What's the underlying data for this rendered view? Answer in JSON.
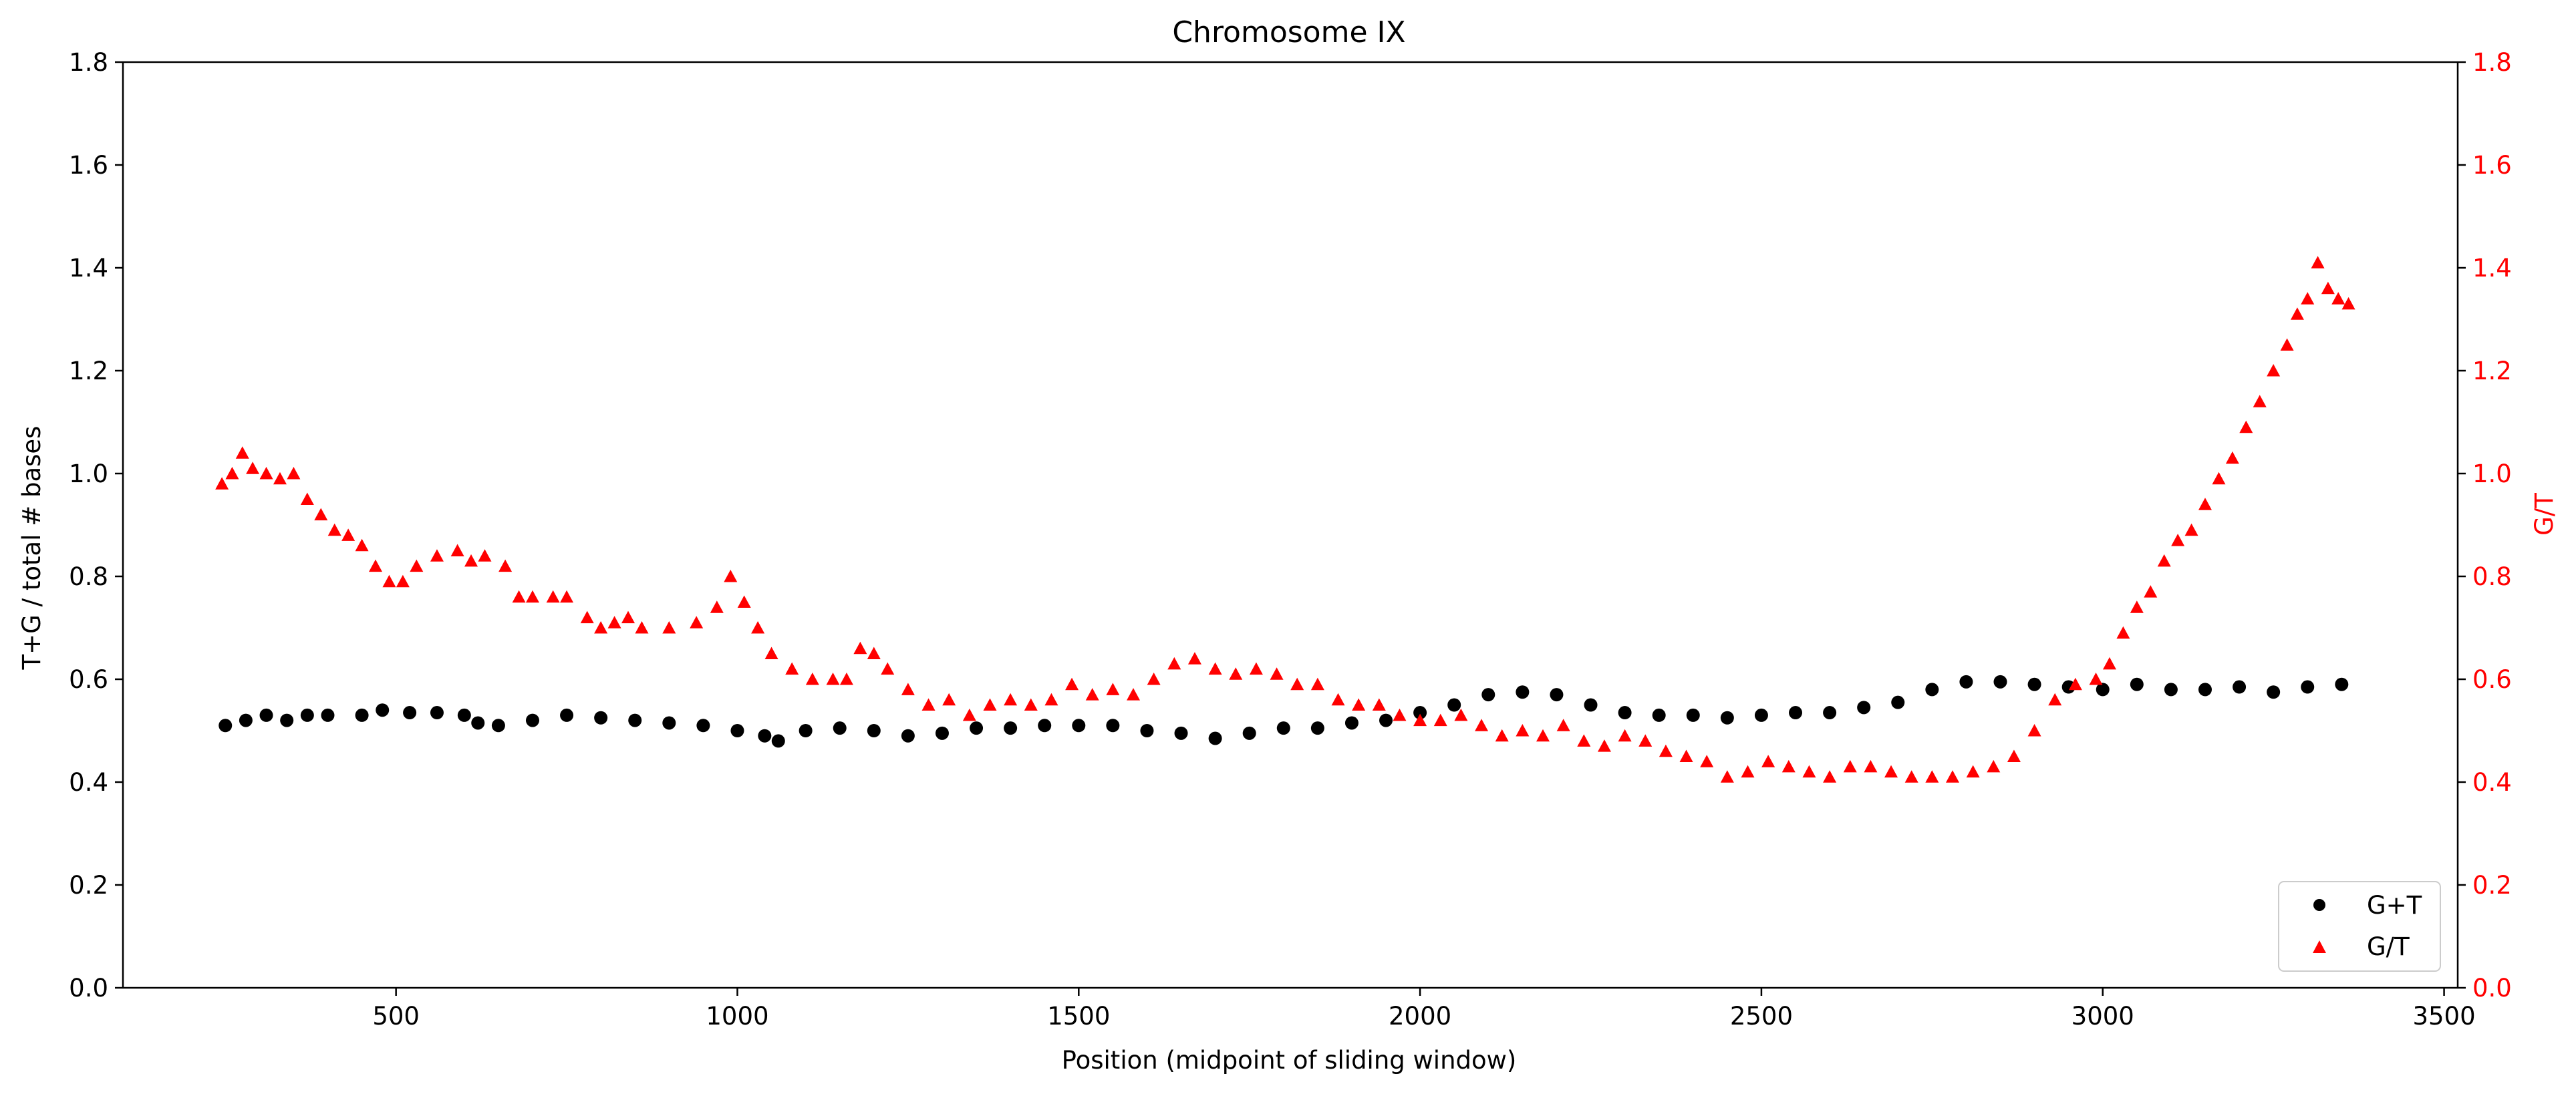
{
  "chart_data": {
    "type": "scatter",
    "title": "Chromosome IX",
    "xlabel": "Position (midpoint of sliding window)",
    "ylabel_left": "T+G / total # bases",
    "ylabel_right": "G/T",
    "xlim": [
      100,
      3520
    ],
    "ylim": [
      0,
      1.8
    ],
    "xticks": [
      500,
      1000,
      1500,
      2000,
      2500,
      3000,
      3500
    ],
    "yticks": [
      0.0,
      0.2,
      0.4,
      0.6,
      0.8,
      1.0,
      1.2,
      1.4,
      1.6,
      1.8
    ],
    "grid": false,
    "legend_position": "lower-right",
    "series": [
      {
        "name": "G+T",
        "axis": "left",
        "marker": "circle",
        "color": "#000000",
        "points": [
          [
            250,
            0.51
          ],
          [
            280,
            0.52
          ],
          [
            310,
            0.53
          ],
          [
            340,
            0.52
          ],
          [
            370,
            0.53
          ],
          [
            400,
            0.53
          ],
          [
            450,
            0.53
          ],
          [
            480,
            0.54
          ],
          [
            520,
            0.535
          ],
          [
            560,
            0.535
          ],
          [
            600,
            0.53
          ],
          [
            620,
            0.515
          ],
          [
            650,
            0.51
          ],
          [
            700,
            0.52
          ],
          [
            750,
            0.53
          ],
          [
            800,
            0.525
          ],
          [
            850,
            0.52
          ],
          [
            900,
            0.515
          ],
          [
            950,
            0.51
          ],
          [
            1000,
            0.5
          ],
          [
            1040,
            0.49
          ],
          [
            1060,
            0.48
          ],
          [
            1100,
            0.5
          ],
          [
            1150,
            0.505
          ],
          [
            1200,
            0.5
          ],
          [
            1250,
            0.49
          ],
          [
            1300,
            0.495
          ],
          [
            1350,
            0.505
          ],
          [
            1400,
            0.505
          ],
          [
            1450,
            0.51
          ],
          [
            1500,
            0.51
          ],
          [
            1550,
            0.51
          ],
          [
            1600,
            0.5
          ],
          [
            1650,
            0.495
          ],
          [
            1700,
            0.485
          ],
          [
            1750,
            0.495
          ],
          [
            1800,
            0.505
          ],
          [
            1850,
            0.505
          ],
          [
            1900,
            0.515
          ],
          [
            1950,
            0.52
          ],
          [
            2000,
            0.535
          ],
          [
            2050,
            0.55
          ],
          [
            2100,
            0.57
          ],
          [
            2150,
            0.575
          ],
          [
            2200,
            0.57
          ],
          [
            2250,
            0.55
          ],
          [
            2300,
            0.535
          ],
          [
            2350,
            0.53
          ],
          [
            2400,
            0.53
          ],
          [
            2450,
            0.525
          ],
          [
            2500,
            0.53
          ],
          [
            2550,
            0.535
          ],
          [
            2600,
            0.535
          ],
          [
            2650,
            0.545
          ],
          [
            2700,
            0.555
          ],
          [
            2750,
            0.58
          ],
          [
            2800,
            0.595
          ],
          [
            2850,
            0.595
          ],
          [
            2900,
            0.59
          ],
          [
            2950,
            0.585
          ],
          [
            3000,
            0.58
          ],
          [
            3050,
            0.59
          ],
          [
            3100,
            0.58
          ],
          [
            3150,
            0.58
          ],
          [
            3200,
            0.585
          ],
          [
            3250,
            0.575
          ],
          [
            3300,
            0.585
          ],
          [
            3350,
            0.59
          ]
        ]
      },
      {
        "name": "G/T",
        "axis": "right",
        "marker": "triangle",
        "color": "#ff0000",
        "points": [
          [
            245,
            0.98
          ],
          [
            260,
            1.0
          ],
          [
            275,
            1.04
          ],
          [
            290,
            1.01
          ],
          [
            310,
            1.0
          ],
          [
            330,
            0.99
          ],
          [
            350,
            1.0
          ],
          [
            370,
            0.95
          ],
          [
            390,
            0.92
          ],
          [
            410,
            0.89
          ],
          [
            430,
            0.88
          ],
          [
            450,
            0.86
          ],
          [
            470,
            0.82
          ],
          [
            490,
            0.79
          ],
          [
            510,
            0.79
          ],
          [
            530,
            0.82
          ],
          [
            560,
            0.84
          ],
          [
            590,
            0.85
          ],
          [
            610,
            0.83
          ],
          [
            630,
            0.84
          ],
          [
            660,
            0.82
          ],
          [
            680,
            0.76
          ],
          [
            700,
            0.76
          ],
          [
            730,
            0.76
          ],
          [
            750,
            0.76
          ],
          [
            780,
            0.72
          ],
          [
            800,
            0.7
          ],
          [
            820,
            0.71
          ],
          [
            840,
            0.72
          ],
          [
            860,
            0.7
          ],
          [
            900,
            0.7
          ],
          [
            940,
            0.71
          ],
          [
            970,
            0.74
          ],
          [
            990,
            0.8
          ],
          [
            1010,
            0.75
          ],
          [
            1030,
            0.7
          ],
          [
            1050,
            0.65
          ],
          [
            1080,
            0.62
          ],
          [
            1110,
            0.6
          ],
          [
            1140,
            0.6
          ],
          [
            1160,
            0.6
          ],
          [
            1180,
            0.66
          ],
          [
            1200,
            0.65
          ],
          [
            1220,
            0.62
          ],
          [
            1250,
            0.58
          ],
          [
            1280,
            0.55
          ],
          [
            1310,
            0.56
          ],
          [
            1340,
            0.53
          ],
          [
            1370,
            0.55
          ],
          [
            1400,
            0.56
          ],
          [
            1430,
            0.55
          ],
          [
            1460,
            0.56
          ],
          [
            1490,
            0.59
          ],
          [
            1520,
            0.57
          ],
          [
            1550,
            0.58
          ],
          [
            1580,
            0.57
          ],
          [
            1610,
            0.6
          ],
          [
            1640,
            0.63
          ],
          [
            1670,
            0.64
          ],
          [
            1700,
            0.62
          ],
          [
            1730,
            0.61
          ],
          [
            1760,
            0.62
          ],
          [
            1790,
            0.61
          ],
          [
            1820,
            0.59
          ],
          [
            1850,
            0.59
          ],
          [
            1880,
            0.56
          ],
          [
            1910,
            0.55
          ],
          [
            1940,
            0.55
          ],
          [
            1970,
            0.53
          ],
          [
            2000,
            0.52
          ],
          [
            2030,
            0.52
          ],
          [
            2060,
            0.53
          ],
          [
            2090,
            0.51
          ],
          [
            2120,
            0.49
          ],
          [
            2150,
            0.5
          ],
          [
            2180,
            0.49
          ],
          [
            2210,
            0.51
          ],
          [
            2240,
            0.48
          ],
          [
            2270,
            0.47
          ],
          [
            2300,
            0.49
          ],
          [
            2330,
            0.48
          ],
          [
            2360,
            0.46
          ],
          [
            2390,
            0.45
          ],
          [
            2420,
            0.44
          ],
          [
            2450,
            0.41
          ],
          [
            2480,
            0.42
          ],
          [
            2510,
            0.44
          ],
          [
            2540,
            0.43
          ],
          [
            2570,
            0.42
          ],
          [
            2600,
            0.41
          ],
          [
            2630,
            0.43
          ],
          [
            2660,
            0.43
          ],
          [
            2690,
            0.42
          ],
          [
            2720,
            0.41
          ],
          [
            2750,
            0.41
          ],
          [
            2780,
            0.41
          ],
          [
            2810,
            0.42
          ],
          [
            2840,
            0.43
          ],
          [
            2870,
            0.45
          ],
          [
            2900,
            0.5
          ],
          [
            2930,
            0.56
          ],
          [
            2960,
            0.59
          ],
          [
            2990,
            0.6
          ],
          [
            3010,
            0.63
          ],
          [
            3030,
            0.69
          ],
          [
            3050,
            0.74
          ],
          [
            3070,
            0.77
          ],
          [
            3090,
            0.83
          ],
          [
            3110,
            0.87
          ],
          [
            3130,
            0.89
          ],
          [
            3150,
            0.94
          ],
          [
            3170,
            0.99
          ],
          [
            3190,
            1.03
          ],
          [
            3210,
            1.09
          ],
          [
            3230,
            1.14
          ],
          [
            3250,
            1.2
          ],
          [
            3270,
            1.25
          ],
          [
            3285,
            1.31
          ],
          [
            3300,
            1.34
          ],
          [
            3315,
            1.41
          ],
          [
            3330,
            1.36
          ],
          [
            3345,
            1.34
          ],
          [
            3360,
            1.33
          ]
        ]
      }
    ]
  }
}
